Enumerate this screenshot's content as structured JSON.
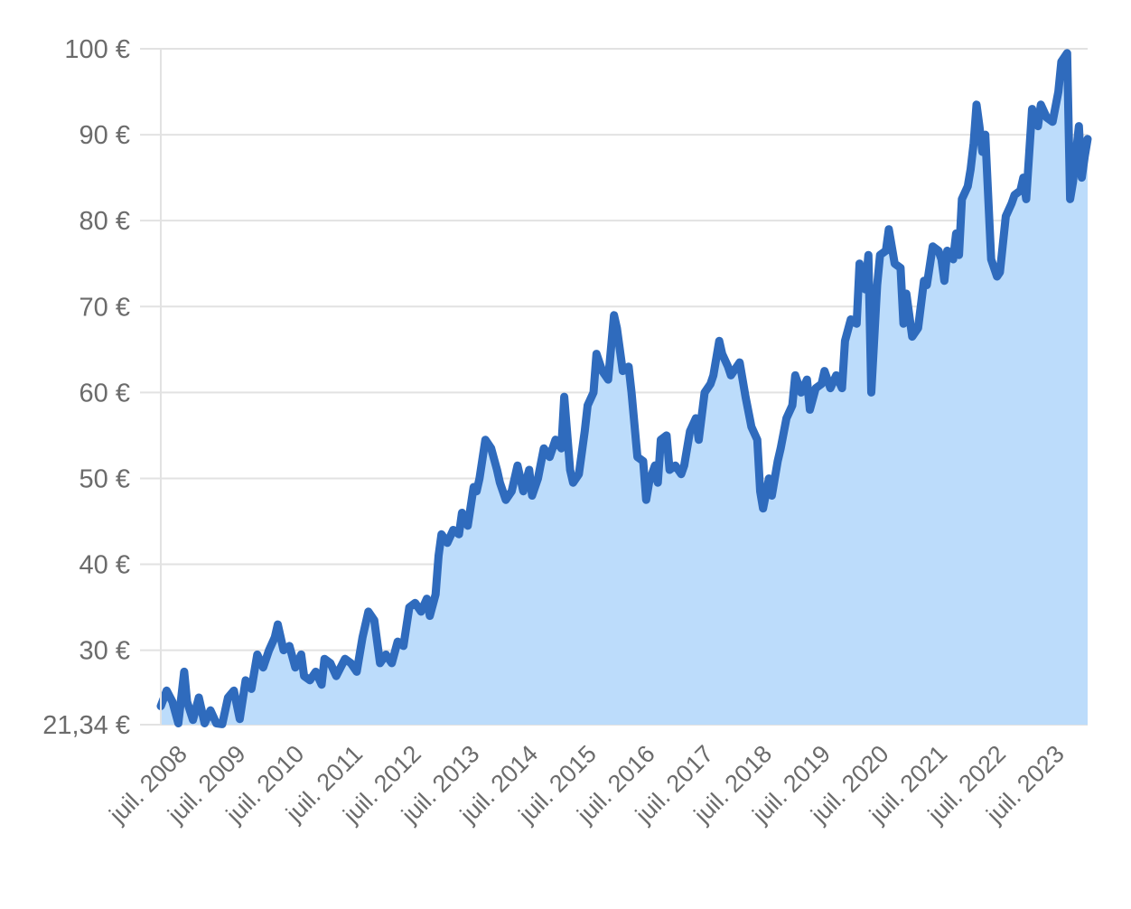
{
  "chart_data": {
    "type": "area",
    "title": "",
    "xlabel": "",
    "ylabel": "",
    "ylim": [
      21.34,
      100
    ],
    "y_ticks": [
      {
        "value": 21.34,
        "label": "21,34 €"
      },
      {
        "value": 30,
        "label": "30 €"
      },
      {
        "value": 40,
        "label": "40 €"
      },
      {
        "value": 50,
        "label": "50 €"
      },
      {
        "value": 60,
        "label": "60 €"
      },
      {
        "value": 70,
        "label": "70 €"
      },
      {
        "value": 80,
        "label": "80 €"
      },
      {
        "value": 90,
        "label": "90 €"
      },
      {
        "value": 100,
        "label": "100 €"
      }
    ],
    "x_range": [
      2008.15,
      2024.0
    ],
    "x_ticks": [
      {
        "value": 2008.5,
        "label": "juil. 2008"
      },
      {
        "value": 2009.5,
        "label": "juil. 2009"
      },
      {
        "value": 2010.5,
        "label": "juil. 2010"
      },
      {
        "value": 2011.5,
        "label": "juil. 2011"
      },
      {
        "value": 2012.5,
        "label": "juil. 2012"
      },
      {
        "value": 2013.5,
        "label": "juil. 2013"
      },
      {
        "value": 2014.5,
        "label": "juil. 2014"
      },
      {
        "value": 2015.5,
        "label": "juil. 2015"
      },
      {
        "value": 2016.5,
        "label": "juil. 2016"
      },
      {
        "value": 2017.5,
        "label": "juil. 2017"
      },
      {
        "value": 2018.5,
        "label": "juil. 2018"
      },
      {
        "value": 2019.5,
        "label": "juil. 2019"
      },
      {
        "value": 2020.5,
        "label": "juil. 2020"
      },
      {
        "value": 2021.5,
        "label": "juil. 2021"
      },
      {
        "value": 2022.5,
        "label": "juil. 2022"
      },
      {
        "value": 2023.5,
        "label": "juil. 2023"
      }
    ],
    "grid": true,
    "colors": {
      "line": "#2f6bbd",
      "fill": "#bcdcfb",
      "grid": "#e2e2e2",
      "text": "#6b6b6b"
    },
    "series": [
      {
        "points": [
          [
            2008.15,
            23.5
          ],
          [
            2008.25,
            25.3
          ],
          [
            2008.35,
            24.0
          ],
          [
            2008.45,
            21.5
          ],
          [
            2008.55,
            27.5
          ],
          [
            2008.6,
            24.0
          ],
          [
            2008.7,
            21.9
          ],
          [
            2008.8,
            24.5
          ],
          [
            2008.9,
            21.5
          ],
          [
            2009.0,
            23.0
          ],
          [
            2009.1,
            21.5
          ],
          [
            2009.2,
            21.4
          ],
          [
            2009.3,
            24.5
          ],
          [
            2009.4,
            25.3
          ],
          [
            2009.5,
            22.0
          ],
          [
            2009.6,
            26.5
          ],
          [
            2009.7,
            25.5
          ],
          [
            2009.8,
            29.5
          ],
          [
            2009.9,
            28.0
          ],
          [
            2010.0,
            30.0
          ],
          [
            2010.1,
            31.5
          ],
          [
            2010.15,
            33.0
          ],
          [
            2010.25,
            30.0
          ],
          [
            2010.35,
            30.5
          ],
          [
            2010.45,
            28.0
          ],
          [
            2010.55,
            29.5
          ],
          [
            2010.6,
            27.0
          ],
          [
            2010.7,
            26.5
          ],
          [
            2010.8,
            27.5
          ],
          [
            2010.9,
            26.0
          ],
          [
            2010.95,
            29.0
          ],
          [
            2011.05,
            28.5
          ],
          [
            2011.15,
            27.0
          ],
          [
            2011.3,
            29.0
          ],
          [
            2011.4,
            28.5
          ],
          [
            2011.5,
            27.5
          ],
          [
            2011.6,
            31.5
          ],
          [
            2011.7,
            34.5
          ],
          [
            2011.8,
            33.5
          ],
          [
            2011.9,
            28.5
          ],
          [
            2012.0,
            29.5
          ],
          [
            2012.1,
            28.5
          ],
          [
            2012.2,
            31.0
          ],
          [
            2012.3,
            30.5
          ],
          [
            2012.4,
            35.0
          ],
          [
            2012.5,
            35.5
          ],
          [
            2012.6,
            34.5
          ],
          [
            2012.7,
            36.0
          ],
          [
            2012.75,
            34.0
          ],
          [
            2012.85,
            36.5
          ],
          [
            2012.9,
            41.0
          ],
          [
            2012.95,
            43.5
          ],
          [
            2013.05,
            42.5
          ],
          [
            2013.15,
            44.0
          ],
          [
            2013.25,
            43.5
          ],
          [
            2013.3,
            46.0
          ],
          [
            2013.4,
            44.5
          ],
          [
            2013.5,
            49.0
          ],
          [
            2013.55,
            48.5
          ],
          [
            2013.6,
            50.0
          ],
          [
            2013.7,
            54.5
          ],
          [
            2013.8,
            53.5
          ],
          [
            2013.9,
            51.0
          ],
          [
            2013.95,
            49.5
          ],
          [
            2014.05,
            47.5
          ],
          [
            2014.15,
            48.5
          ],
          [
            2014.25,
            51.5
          ],
          [
            2014.35,
            48.5
          ],
          [
            2014.45,
            51.0
          ],
          [
            2014.5,
            48.0
          ],
          [
            2014.6,
            50.0
          ],
          [
            2014.7,
            53.5
          ],
          [
            2014.8,
            52.5
          ],
          [
            2014.9,
            54.5
          ],
          [
            2015.0,
            53.5
          ],
          [
            2015.05,
            59.5
          ],
          [
            2015.15,
            51.0
          ],
          [
            2015.2,
            49.5
          ],
          [
            2015.3,
            50.5
          ],
          [
            2015.4,
            55.5
          ],
          [
            2015.45,
            58.5
          ],
          [
            2015.55,
            60.0
          ],
          [
            2015.6,
            64.5
          ],
          [
            2015.7,
            62.5
          ],
          [
            2015.8,
            61.5
          ],
          [
            2015.9,
            69.0
          ],
          [
            2015.95,
            67.5
          ],
          [
            2016.05,
            62.5
          ],
          [
            2016.15,
            63.0
          ],
          [
            2016.2,
            60.0
          ],
          [
            2016.3,
            52.5
          ],
          [
            2016.4,
            52.0
          ],
          [
            2016.45,
            47.5
          ],
          [
            2016.5,
            49.5
          ],
          [
            2016.6,
            51.5
          ],
          [
            2016.65,
            49.5
          ],
          [
            2016.7,
            54.5
          ],
          [
            2016.8,
            55.0
          ],
          [
            2016.85,
            51.0
          ],
          [
            2016.95,
            51.5
          ],
          [
            2017.05,
            50.5
          ],
          [
            2017.1,
            51.5
          ],
          [
            2017.2,
            55.5
          ],
          [
            2017.3,
            57.0
          ],
          [
            2017.35,
            54.5
          ],
          [
            2017.45,
            60.0
          ],
          [
            2017.55,
            61.0
          ],
          [
            2017.6,
            62.0
          ],
          [
            2017.7,
            66.0
          ],
          [
            2017.75,
            64.5
          ],
          [
            2017.85,
            63.0
          ],
          [
            2017.9,
            62.0
          ],
          [
            2017.95,
            62.5
          ],
          [
            2018.05,
            63.5
          ],
          [
            2018.15,
            59.5
          ],
          [
            2018.25,
            56.0
          ],
          [
            2018.35,
            54.5
          ],
          [
            2018.4,
            48.5
          ],
          [
            2018.45,
            46.5
          ],
          [
            2018.55,
            50.0
          ],
          [
            2018.6,
            48.0
          ],
          [
            2018.7,
            52.0
          ],
          [
            2018.75,
            53.5
          ],
          [
            2018.85,
            57.0
          ],
          [
            2018.95,
            58.5
          ],
          [
            2019.0,
            62.0
          ],
          [
            2019.1,
            60.0
          ],
          [
            2019.2,
            61.5
          ],
          [
            2019.25,
            58.0
          ],
          [
            2019.35,
            60.5
          ],
          [
            2019.45,
            61.0
          ],
          [
            2019.5,
            62.5
          ],
          [
            2019.6,
            60.5
          ],
          [
            2019.7,
            62.0
          ],
          [
            2019.8,
            60.5
          ],
          [
            2019.85,
            66.0
          ],
          [
            2019.95,
            68.5
          ],
          [
            2020.05,
            68.0
          ],
          [
            2020.1,
            75.0
          ],
          [
            2020.2,
            72.0
          ],
          [
            2020.25,
            76.0
          ],
          [
            2020.3,
            60.0
          ],
          [
            2020.4,
            72.5
          ],
          [
            2020.45,
            76.0
          ],
          [
            2020.55,
            76.5
          ],
          [
            2020.6,
            79.0
          ],
          [
            2020.7,
            75.0
          ],
          [
            2020.8,
            74.5
          ],
          [
            2020.85,
            68.0
          ],
          [
            2020.9,
            71.5
          ],
          [
            2021.0,
            66.5
          ],
          [
            2021.1,
            67.5
          ],
          [
            2021.2,
            73.0
          ],
          [
            2021.25,
            72.5
          ],
          [
            2021.35,
            77.0
          ],
          [
            2021.45,
            76.5
          ],
          [
            2021.5,
            75.5
          ],
          [
            2021.55,
            73.0
          ],
          [
            2021.6,
            76.5
          ],
          [
            2021.7,
            75.5
          ],
          [
            2021.75,
            78.5
          ],
          [
            2021.8,
            76.0
          ],
          [
            2021.85,
            82.5
          ],
          [
            2021.95,
            84.0
          ],
          [
            2022.0,
            86.0
          ],
          [
            2022.05,
            89.0
          ],
          [
            2022.1,
            93.5
          ],
          [
            2022.15,
            91.0
          ],
          [
            2022.2,
            88.0
          ],
          [
            2022.25,
            90.0
          ],
          [
            2022.35,
            75.5
          ],
          [
            2022.45,
            73.5
          ],
          [
            2022.5,
            74.0
          ],
          [
            2022.6,
            80.5
          ],
          [
            2022.7,
            82.0
          ],
          [
            2022.75,
            83.0
          ],
          [
            2022.85,
            83.5
          ],
          [
            2022.9,
            85.0
          ],
          [
            2022.95,
            82.5
          ],
          [
            2023.05,
            93.0
          ],
          [
            2023.15,
            91.0
          ],
          [
            2023.2,
            93.5
          ],
          [
            2023.3,
            92.0
          ],
          [
            2023.4,
            91.5
          ],
          [
            2023.5,
            95.0
          ],
          [
            2023.55,
            98.5
          ],
          [
            2023.65,
            99.5
          ],
          [
            2023.7,
            82.5
          ],
          [
            2023.75,
            84.5
          ],
          [
            2023.85,
            91.0
          ],
          [
            2023.9,
            85.0
          ],
          [
            2023.95,
            87.5
          ],
          [
            2024.0,
            89.5
          ]
        ]
      }
    ]
  }
}
